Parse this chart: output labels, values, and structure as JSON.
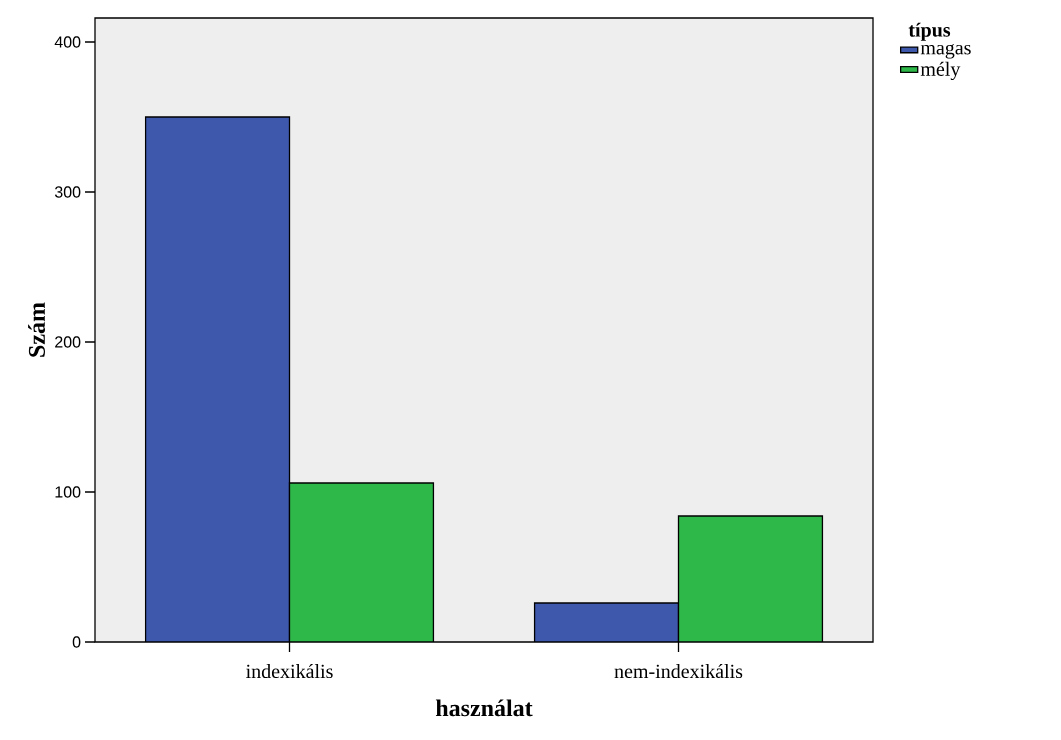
{
  "chart_data": {
    "type": "bar",
    "xlabel": "használat",
    "ylabel": "Szám",
    "legend_title": "típus",
    "categories": [
      "indexikális",
      "nem-indexikális"
    ],
    "series": [
      {
        "name": "magas",
        "color": "#3e58ac",
        "values": [
          350,
          26
        ]
      },
      {
        "name": "mély",
        "color": "#2fb84a",
        "values": [
          106,
          84
        ]
      }
    ],
    "ylim": [
      0,
      416
    ],
    "yticks": [
      0,
      100,
      200,
      300,
      400
    ],
    "grid": false,
    "legend": "top right"
  }
}
